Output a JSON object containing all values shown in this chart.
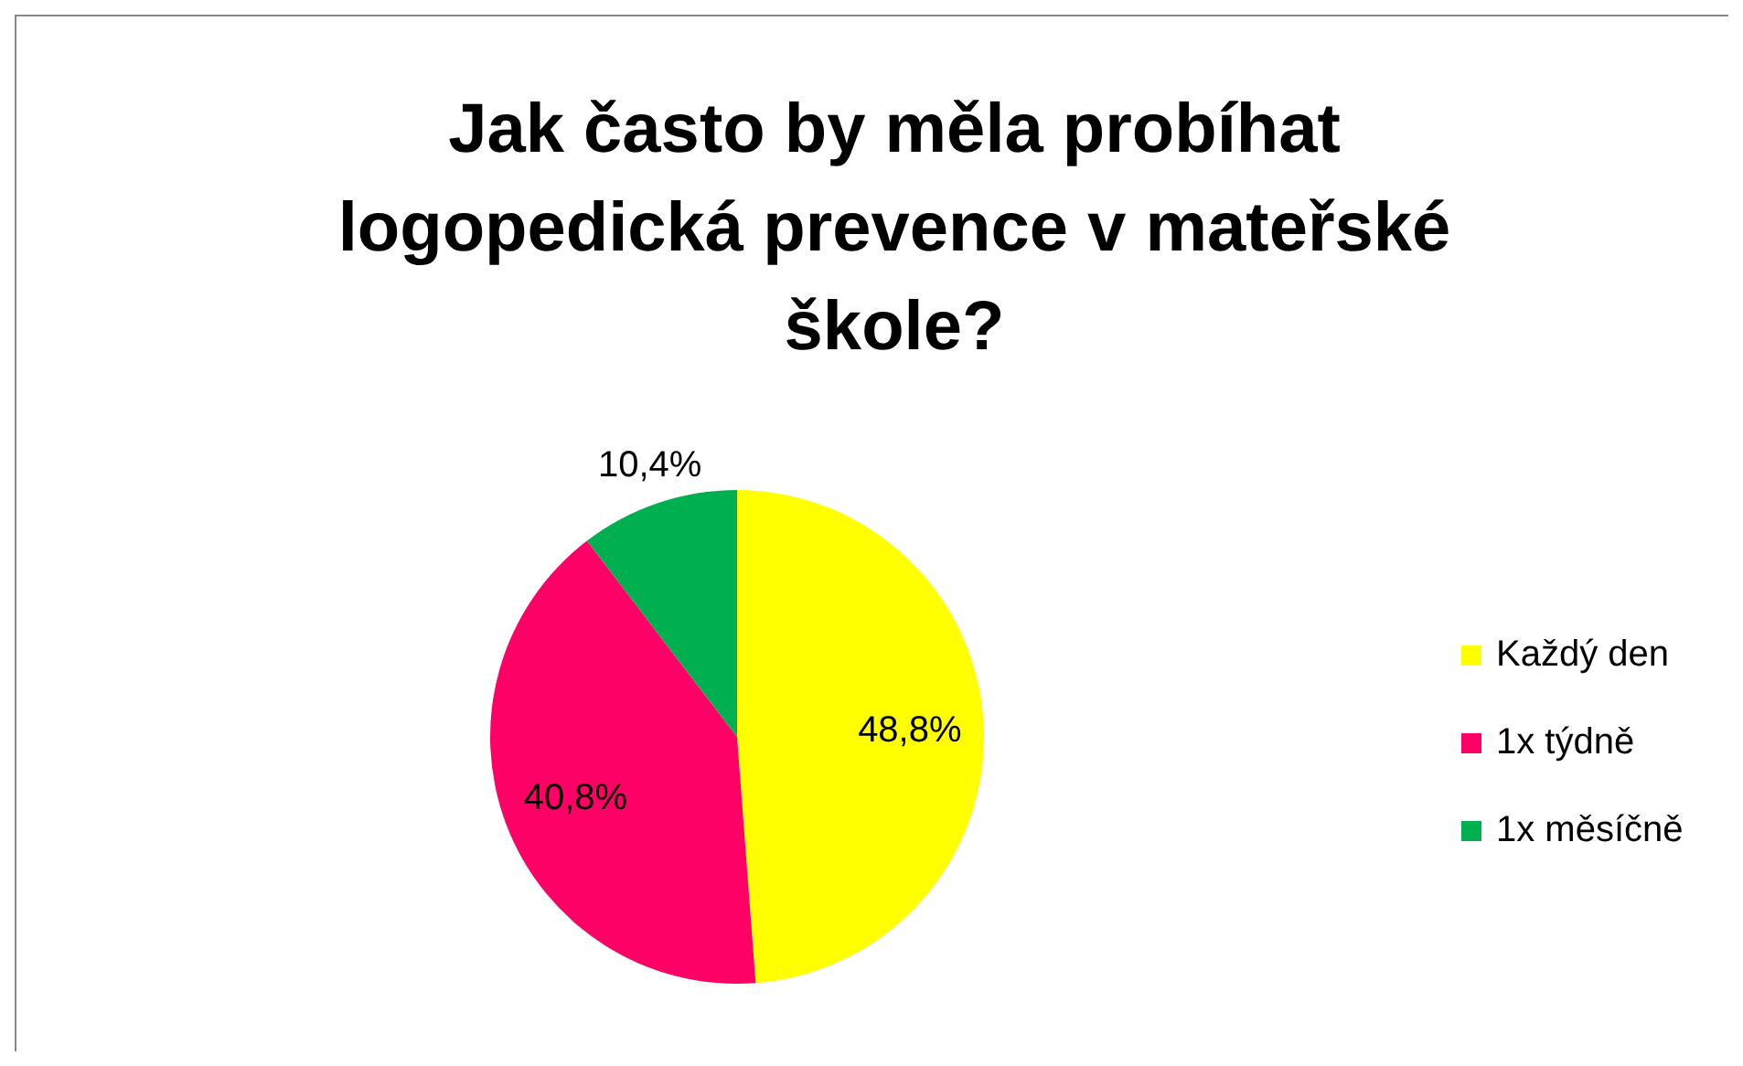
{
  "chart_data": {
    "type": "pie",
    "title": "Jak často by měla probíhat logopedická prevence v mateřské škole?",
    "categories": [
      "Každý den",
      "1x týdně",
      "1x měsíčně"
    ],
    "values": [
      48.8,
      40.8,
      10.4
    ],
    "colors": [
      "#ffff00",
      "#ff0066",
      "#00b050"
    ],
    "value_labels": [
      "48,8%",
      "40,8%",
      "10,4%"
    ],
    "legend": "right"
  }
}
